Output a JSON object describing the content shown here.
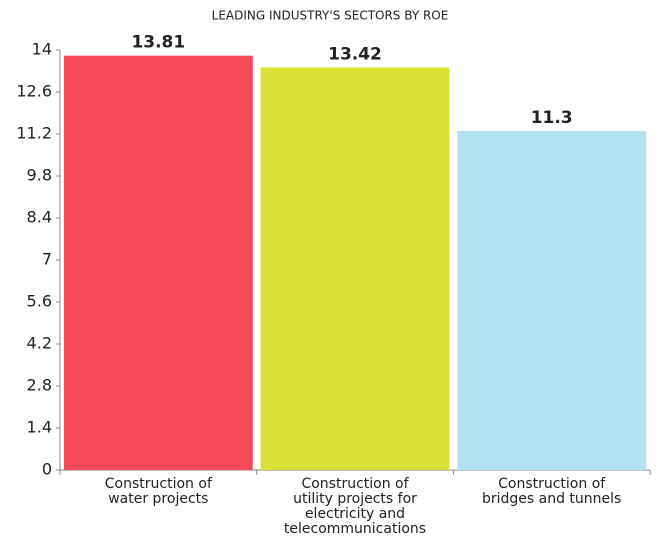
{
  "chart_data": {
    "type": "bar",
    "title": "LEADING INDUSTRY'S SECTORS BY ROE",
    "categories": [
      [
        "Construction of",
        "water projects"
      ],
      [
        "Construction of",
        "utility projects for",
        "electricity and",
        "telecommunications"
      ],
      [
        "Construction of",
        "bridges and tunnels"
      ]
    ],
    "values": [
      13.81,
      13.42,
      11.3
    ],
    "colors": [
      "#f94b5a",
      "#d8e034",
      "#b0e2f2"
    ],
    "ylim": [
      0,
      14
    ],
    "yticks": [
      0,
      1.4,
      2.8,
      4.2,
      5.6,
      7,
      8.4,
      9.8,
      11.2,
      12.6,
      14
    ],
    "grid": false
  }
}
